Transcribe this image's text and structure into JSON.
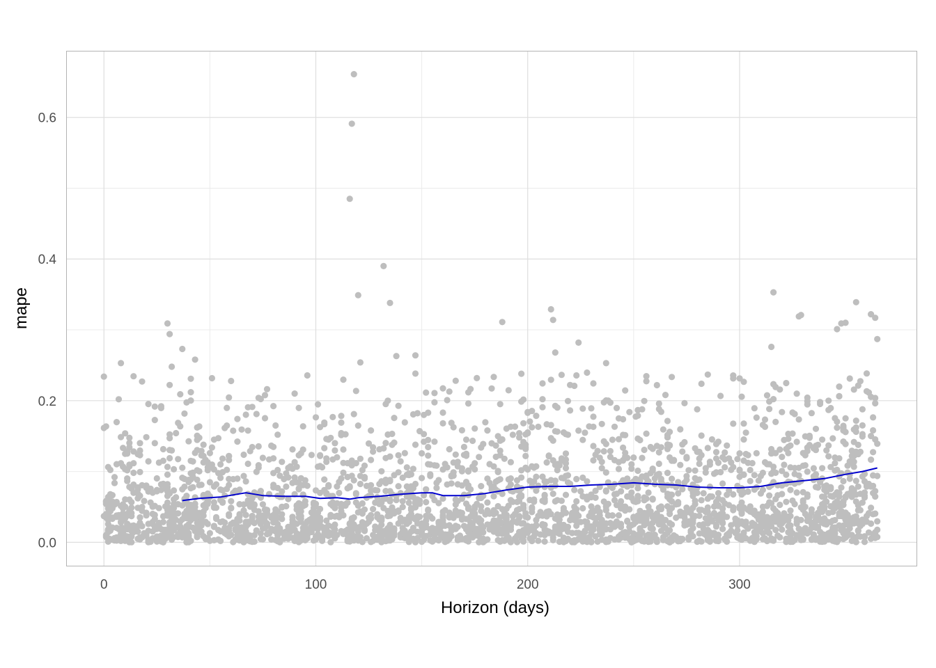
{
  "chart_data": {
    "type": "scatter",
    "title": "",
    "xlabel": "Horizon (days)",
    "ylabel": "mape",
    "xlim": [
      -17.5,
      383.5
    ],
    "ylim": [
      -0.033,
      0.693
    ],
    "x_ticks": [
      0,
      100,
      200,
      300
    ],
    "x_tick_labels": [
      "0",
      "100",
      "200",
      "300"
    ],
    "y_ticks": [
      0.0,
      0.2,
      0.4,
      0.6
    ],
    "y_tick_labels": [
      "0.0",
      "0.2",
      "0.4",
      "0.6"
    ],
    "grid": true,
    "legend": "none",
    "point_color": "#bebebe",
    "line_color": "#0000cd",
    "outlier_points": [
      {
        "x": 0,
        "y": 0.234
      },
      {
        "x": 8,
        "y": 0.253
      },
      {
        "x": 7,
        "y": 0.202
      },
      {
        "x": 30,
        "y": 0.309
      },
      {
        "x": 31,
        "y": 0.294
      },
      {
        "x": 32,
        "y": 0.248
      },
      {
        "x": 37,
        "y": 0.273
      },
      {
        "x": 43,
        "y": 0.258
      },
      {
        "x": 41,
        "y": 0.231
      },
      {
        "x": 116,
        "y": 0.485
      },
      {
        "x": 117,
        "y": 0.591
      },
      {
        "x": 118,
        "y": 0.661
      },
      {
        "x": 120,
        "y": 0.349
      },
      {
        "x": 121,
        "y": 0.254
      },
      {
        "x": 132,
        "y": 0.39
      },
      {
        "x": 135,
        "y": 0.338
      },
      {
        "x": 138,
        "y": 0.263
      },
      {
        "x": 147,
        "y": 0.264
      },
      {
        "x": 188,
        "y": 0.311
      },
      {
        "x": 211,
        "y": 0.329
      },
      {
        "x": 212,
        "y": 0.314
      },
      {
        "x": 213,
        "y": 0.268
      },
      {
        "x": 224,
        "y": 0.282
      },
      {
        "x": 237,
        "y": 0.253
      },
      {
        "x": 315,
        "y": 0.276
      },
      {
        "x": 316,
        "y": 0.353
      },
      {
        "x": 328,
        "y": 0.319
      },
      {
        "x": 329,
        "y": 0.321
      },
      {
        "x": 346,
        "y": 0.301
      },
      {
        "x": 348,
        "y": 0.309
      },
      {
        "x": 350,
        "y": 0.31
      },
      {
        "x": 355,
        "y": 0.339
      },
      {
        "x": 362,
        "y": 0.322
      },
      {
        "x": 364,
        "y": 0.317
      },
      {
        "x": 365,
        "y": 0.287
      }
    ],
    "trend_line": {
      "x": [
        37,
        45,
        55,
        63,
        67,
        75,
        85,
        95,
        102,
        110,
        116,
        120,
        130,
        140,
        150,
        155,
        160,
        170,
        180,
        190,
        200,
        210,
        220,
        230,
        240,
        250,
        260,
        270,
        280,
        290,
        300,
        310,
        320,
        330,
        340,
        350,
        358,
        365
      ],
      "y": [
        0.059,
        0.062,
        0.064,
        0.068,
        0.07,
        0.066,
        0.065,
        0.065,
        0.062,
        0.063,
        0.061,
        0.063,
        0.065,
        0.068,
        0.07,
        0.07,
        0.066,
        0.066,
        0.069,
        0.074,
        0.078,
        0.079,
        0.079,
        0.081,
        0.082,
        0.084,
        0.082,
        0.081,
        0.078,
        0.077,
        0.077,
        0.079,
        0.084,
        0.087,
        0.09,
        0.096,
        0.1,
        0.105
      ]
    },
    "noise_band": {
      "x_range": [
        0,
        365
      ],
      "y_range": [
        0.0,
        0.24
      ],
      "approx_points": 2920
    }
  }
}
